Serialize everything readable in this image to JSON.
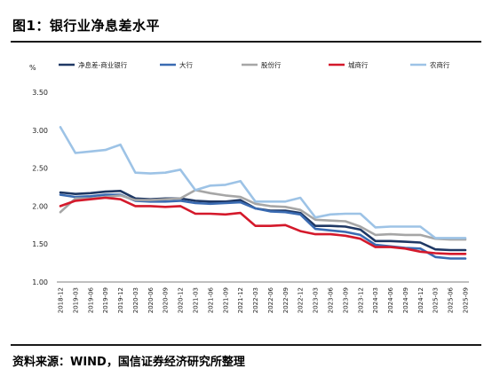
{
  "header": {
    "title": "图1：银行业净息差水平"
  },
  "footer": {
    "source": "资料来源：WIND，国信证券经济研究所整理"
  },
  "chart_data": {
    "type": "line",
    "title": "",
    "unit_label": "%",
    "xlabel": "",
    "ylabel": "",
    "ylim": [
      1.0,
      3.5
    ],
    "yticks": [
      "1.00",
      "1.50",
      "2.00",
      "2.50",
      "3.00",
      "3.50"
    ],
    "legend_position": "top",
    "grid": false,
    "x": [
      "2018-12",
      "2019-03",
      "2019-06",
      "2019-09",
      "2019-12",
      "2020-03",
      "2020-06",
      "2020-09",
      "2020-12",
      "2021-03",
      "2021-06",
      "2021-09",
      "2021-12",
      "2022-03",
      "2022-06",
      "2022-09",
      "2022-12",
      "2023-03",
      "2023-06",
      "2023-09",
      "2023-12",
      "2024-03",
      "2024-06",
      "2024-09",
      "2024-12",
      "2025-03",
      "2025-06",
      "2025-09"
    ],
    "series": [
      {
        "name": "净息差-商业银行",
        "color": "#1f3864",
        "values": [
          2.18,
          2.16,
          2.17,
          2.19,
          2.2,
          2.1,
          2.09,
          2.1,
          2.1,
          2.07,
          2.06,
          2.06,
          2.08,
          1.97,
          1.94,
          1.94,
          1.91,
          1.74,
          1.74,
          1.73,
          1.69,
          1.54,
          1.54,
          1.53,
          1.52,
          1.43,
          1.42,
          1.42
        ]
      },
      {
        "name": "大行",
        "color": "#3a6bb2",
        "values": [
          2.15,
          2.12,
          2.13,
          2.15,
          2.15,
          2.07,
          2.06,
          2.06,
          2.07,
          2.04,
          2.03,
          2.04,
          2.05,
          1.97,
          1.93,
          1.92,
          1.89,
          1.7,
          1.68,
          1.66,
          1.62,
          1.49,
          1.47,
          1.45,
          1.44,
          1.33,
          1.31,
          1.31
        ]
      },
      {
        "name": "股份行",
        "color": "#a6a6a6",
        "values": [
          1.92,
          2.1,
          2.1,
          2.12,
          2.14,
          2.08,
          2.08,
          2.09,
          2.1,
          2.21,
          2.17,
          2.14,
          2.12,
          2.03,
          2.0,
          1.99,
          1.95,
          1.82,
          1.81,
          1.8,
          1.73,
          1.62,
          1.63,
          1.62,
          1.62,
          1.57,
          1.56,
          1.56
        ]
      },
      {
        "name": "城商行",
        "color": "#d4192b",
        "values": [
          2.0,
          2.07,
          2.09,
          2.11,
          2.09,
          2.0,
          2.0,
          1.99,
          2.0,
          1.9,
          1.9,
          1.89,
          1.91,
          1.74,
          1.74,
          1.75,
          1.67,
          1.63,
          1.63,
          1.61,
          1.57,
          1.46,
          1.46,
          1.44,
          1.4,
          1.38,
          1.37,
          1.37
        ]
      },
      {
        "name": "农商行",
        "color": "#9dc3e6",
        "values": [
          3.04,
          2.7,
          2.72,
          2.74,
          2.81,
          2.44,
          2.43,
          2.44,
          2.48,
          2.21,
          2.27,
          2.28,
          2.33,
          2.06,
          2.06,
          2.06,
          2.11,
          1.85,
          1.89,
          1.9,
          1.9,
          1.72,
          1.73,
          1.73,
          1.73,
          1.58,
          1.58,
          1.58
        ]
      }
    ]
  }
}
